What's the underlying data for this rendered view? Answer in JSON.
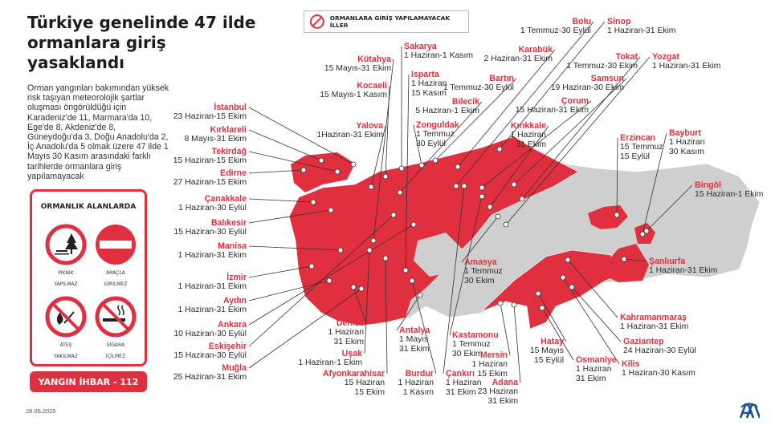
{
  "title": "Türkiye genelinde 47 ilde ormanlara giriş yasaklandı",
  "description": "Orman yangınları bakımından yüksek risk taşıyan meteorolojik şartlar oluşması öngörüldüğü için Karadeniz'de 11, Marmara'da 10, Ege'de 8, Akdeniz'de 8, Güneydoğu'da 3, Doğu Anadolu'da 2, İç Anadolu'da 5 olmak üzere 47 ilde 1 Mayıs 30 Kasım arasındaki farklı tarihlerde ormanlara giriş yapılamayacak",
  "legend": {
    "icon": "prohibited-icon",
    "label": "ORMANLARA GİRİŞ YAPILAMAYACAK İLLER"
  },
  "colors": {
    "accent": "#e0303f",
    "map_other": "#cfcfcf"
  },
  "panel": {
    "title": "ORMANLIK ALANLARDA",
    "signs": [
      {
        "icon": "no-picnic-icon",
        "line1": "PİKNİK",
        "line2": "YAPILMAZ"
      },
      {
        "icon": "no-entry-icon",
        "line1": "ARAÇLA",
        "line2": "GİRİLMEZ"
      },
      {
        "icon": "no-fire-icon",
        "line1": "ATEŞ",
        "line2": "YAKILMAZ"
      },
      {
        "icon": "no-smoking-icon",
        "line1": "SİGARA",
        "line2": "İÇİLMEZ"
      }
    ],
    "hotline": "YANGIN İHBAR - 112"
  },
  "footer": {
    "date": "28.06.2025",
    "logo": "AA"
  },
  "provinces": [
    {
      "name": "İstanbul",
      "dates": [
        "23 Haziran-15 Ekim"
      ]
    },
    {
      "name": "Kırklareli",
      "dates": [
        "8 Mayıs-31 Ekim"
      ]
    },
    {
      "name": "Tekirdağ",
      "dates": [
        "15 Haziran-15 Ekim"
      ]
    },
    {
      "name": "Edirne",
      "dates": [
        "27 Haziran-15 Ekim"
      ]
    },
    {
      "name": "Çanakkale",
      "dates": [
        "1 Haziran-30 Eylül"
      ]
    },
    {
      "name": "Balıkesir",
      "dates": [
        "15 Haziran-30 Eylül"
      ]
    },
    {
      "name": "Manisa",
      "dates": [
        "1 Haziran-31 Ekim"
      ]
    },
    {
      "name": "İzmir",
      "dates": [
        "1 Haziran-31 Ekim"
      ]
    },
    {
      "name": "Aydın",
      "dates": [
        "1 Haziran-31 Ekim"
      ]
    },
    {
      "name": "Ankara",
      "dates": [
        "10 Haziran-30 Eylül"
      ]
    },
    {
      "name": "Eskişehir",
      "dates": [
        "15 Haziran-30 Eylül"
      ]
    },
    {
      "name": "Muğla",
      "dates": [
        "25 Haziran-31 Ekim"
      ]
    },
    {
      "name": "Kütahya",
      "dates": [
        "15 Mayıs-31 Ekim"
      ]
    },
    {
      "name": "Kocaeli",
      "dates": [
        "15 Mayıs-1 Kasım"
      ]
    },
    {
      "name": "Yalova",
      "dates": [
        "1Haziran-31 Ekim"
      ]
    },
    {
      "name": "Sakarya",
      "dates": [
        "1 Haziran-1 Kasım"
      ]
    },
    {
      "name": "Isparta",
      "dates": [
        "1 Haziran",
        "15 Kasım"
      ]
    },
    {
      "name": "Zonguldak",
      "dates": [
        "1 Temmuz",
        "30 Eylül"
      ]
    },
    {
      "name": "Bartın",
      "dates": [
        "1 Temmuz-30 Eylül"
      ]
    },
    {
      "name": "Bilecik",
      "dates": [
        "5 Haziran-1 Ekim"
      ]
    },
    {
      "name": "Karabük",
      "dates": [
        "2 Haziran-31 Ekim"
      ]
    },
    {
      "name": "Bolu",
      "dates": [
        "1 Temmuz-30 Eylül"
      ]
    },
    {
      "name": "Sinop",
      "dates": [
        "1 Haziran-31 Ekim"
      ]
    },
    {
      "name": "Tokat",
      "dates": [
        "1 Temmuz-30 Ekim"
      ]
    },
    {
      "name": "Yozgat",
      "dates": [
        "1 Haziran-31 Ekim"
      ]
    },
    {
      "name": "Samsun",
      "dates": [
        "19 Haziran-30 Ekim"
      ]
    },
    {
      "name": "Çorum",
      "dates": [
        "15 Haziran-31 Ekim"
      ]
    },
    {
      "name": "Kırıkkale",
      "dates": [
        "1 Haziran",
        "31 Ekim"
      ]
    },
    {
      "name": "Erzincan",
      "dates": [
        "15 Temmuz",
        "15 Eylül"
      ]
    },
    {
      "name": "Bayburt",
      "dates": [
        "1 Haziran",
        "30 Kasım"
      ]
    },
    {
      "name": "Bingöl",
      "dates": [
        "15 Haziran-1 Ekim"
      ]
    },
    {
      "name": "Şanlıurfa",
      "dates": [
        "1 Haziran-31 Ekim"
      ]
    },
    {
      "name": "Kahramanmaraş",
      "dates": [
        "1 Haziran-31 Ekim"
      ]
    },
    {
      "name": "Gaziantep",
      "dates": [
        "24 Haziran-30 Eylül"
      ]
    },
    {
      "name": "Kilis",
      "dates": [
        "1 Haziran-30 Kasım"
      ]
    },
    {
      "name": "Hatay",
      "dates": [
        "15 Mayıs",
        "15 Eylül"
      ]
    },
    {
      "name": "Osmaniye",
      "dates": [
        "1 Haziran",
        "31 Ekim"
      ]
    },
    {
      "name": "Amasya",
      "dates": [
        "1 Temmuz",
        "30 Ekim"
      ]
    },
    {
      "name": "Kastamonu",
      "dates": [
        "1 Temmuz",
        "30 Ekim"
      ]
    },
    {
      "name": "Mersin",
      "dates": [
        "1 Haziran",
        "15 Ekim"
      ]
    },
    {
      "name": "Adana",
      "dates": [
        "23 Haziran",
        "31 Ekim"
      ]
    },
    {
      "name": "Çankırı",
      "dates": [
        "1 Haziran",
        "31 Ekim"
      ]
    },
    {
      "name": "Burdur",
      "dates": [
        "1 Haziran",
        "1 Kasım"
      ]
    },
    {
      "name": "Antalya",
      "dates": [
        "1 Mayıs",
        "31 Ekim"
      ]
    },
    {
      "name": "Denizli",
      "dates": [
        "1 Haziran",
        "31 Ekim"
      ]
    },
    {
      "name": "Uşak",
      "dates": [
        "1 Haziran-1 Ekim"
      ]
    },
    {
      "name": "Afyonkarahisar",
      "dates": [
        "15 Haziran",
        "15 Ekim"
      ]
    }
  ]
}
